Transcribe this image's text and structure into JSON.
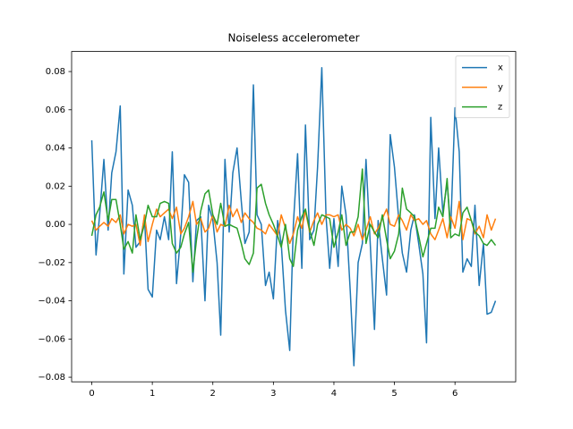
{
  "chart_data": {
    "type": "line",
    "title": "Noiseless accelerometer",
    "x": [
      0,
      0.07,
      0.13,
      0.2,
      0.27,
      0.33,
      0.4,
      0.47,
      0.53,
      0.6,
      0.67,
      0.73,
      0.8,
      0.87,
      0.93,
      1,
      1.07,
      1.13,
      1.2,
      1.27,
      1.33,
      1.4,
      1.47,
      1.53,
      1.6,
      1.67,
      1.73,
      1.8,
      1.87,
      1.93,
      2,
      2.07,
      2.13,
      2.2,
      2.27,
      2.33,
      2.4,
      2.47,
      2.53,
      2.6,
      2.67,
      2.73,
      2.8,
      2.87,
      2.93,
      3,
      3.07,
      3.13,
      3.2,
      3.27,
      3.33,
      3.4,
      3.47,
      3.53,
      3.6,
      3.67,
      3.73,
      3.8,
      3.87,
      3.93,
      4,
      4.07,
      4.13,
      4.2,
      4.27,
      4.33,
      4.4,
      4.47,
      4.53,
      4.6,
      4.67,
      4.73,
      4.8,
      4.87,
      4.93,
      5,
      5.07,
      5.13,
      5.2,
      5.27,
      5.33,
      5.4,
      5.47,
      5.53,
      5.6,
      5.67,
      5.73,
      5.8,
      5.87,
      5.93,
      6,
      6.07,
      6.13,
      6.2,
      6.27,
      6.33,
      6.4,
      6.47,
      6.53,
      6.6,
      6.67
    ],
    "series": [
      {
        "name": "x",
        "color": "#1f77b4",
        "values": [
          0.044,
          -0.016,
          0.005,
          0.034,
          -0.003,
          0.027,
          0.038,
          0.062,
          -0.026,
          0.018,
          0.01,
          -0.012,
          -0.009,
          0.004,
          -0.034,
          -0.038,
          -0.003,
          -0.008,
          0.004,
          -0.008,
          0.038,
          -0.031,
          -0.005,
          0.026,
          0.022,
          -0.03,
          0.002,
          0.004,
          -0.04,
          0.01,
          0.002,
          -0.02,
          -0.058,
          0.034,
          -0.004,
          0.027,
          0.04,
          0.012,
          -0.01,
          -0.004,
          0.073,
          0.005,
          0.0,
          -0.032,
          -0.025,
          -0.039,
          0.002,
          -0.01,
          -0.045,
          -0.066,
          0.0,
          0.037,
          -0.023,
          0.052,
          -0.008,
          -0.003,
          0.03,
          0.082,
          0.004,
          -0.023,
          0.003,
          -0.022,
          0.02,
          0.005,
          -0.035,
          -0.074,
          -0.02,
          -0.01,
          0.034,
          -0.01,
          -0.055,
          0.002,
          -0.018,
          -0.037,
          0.047,
          0.03,
          0.003,
          -0.015,
          -0.025,
          -0.003,
          0.005,
          -0.01,
          -0.026,
          -0.062,
          0.056,
          0.003,
          0.04,
          0.006,
          0.022,
          -0.002,
          0.061,
          0.038,
          -0.025,
          -0.018,
          -0.022,
          0.01,
          -0.032,
          -0.01,
          -0.047,
          -0.046,
          -0.04
        ]
      },
      {
        "name": "y",
        "color": "#ff7f0e",
        "values": [
          0.002,
          -0.003,
          -0.001,
          0.001,
          -0.001,
          0.003,
          0.001,
          0.005,
          -0.005,
          0.0,
          -0.001,
          0.0,
          -0.011,
          0.005,
          -0.009,
          0.0,
          0.008,
          0.004,
          0.006,
          0.008,
          0.003,
          0.009,
          -0.005,
          -0.002,
          0.004,
          0.012,
          0.0,
          0.003,
          -0.004,
          -0.002,
          0.005,
          -0.004,
          0.0,
          -0.001,
          0.01,
          0.004,
          0.008,
          0.001,
          0.006,
          0.003,
          0.001,
          -0.002,
          -0.003,
          -0.005,
          0.0,
          -0.003,
          -0.006,
          0.005,
          -0.002,
          -0.01,
          -0.005,
          0.004,
          -0.002,
          0.007,
          -0.004,
          0.002,
          0.006,
          0.0,
          0.005,
          0.005,
          0.004,
          0.005,
          -0.003,
          0.0,
          -0.002,
          -0.006,
          0.0,
          -0.008,
          -0.003,
          0.004,
          -0.005,
          -0.002,
          0.003,
          0.008,
          0.0,
          -0.001,
          0.005,
          0.002,
          -0.003,
          0.005,
          0.002,
          0.003,
          0.0,
          0.002,
          -0.005,
          -0.008,
          -0.003,
          0.003,
          -0.007,
          0.004,
          -0.002,
          0.012,
          -0.008,
          0.003,
          0.002,
          -0.005,
          -0.001,
          -0.007,
          0.005,
          -0.003,
          0.003
        ]
      },
      {
        "name": "z",
        "color": "#2ca02c",
        "values": [
          -0.006,
          0.005,
          0.009,
          0.017,
          0.002,
          0.013,
          0.013,
          0.0,
          -0.013,
          -0.009,
          -0.015,
          0.005,
          -0.008,
          0.0,
          0.01,
          0.004,
          0.004,
          0.011,
          0.012,
          0.011,
          -0.01,
          -0.015,
          -0.012,
          -0.005,
          0.001,
          -0.025,
          -0.008,
          0.007,
          0.016,
          0.018,
          0.005,
          0.0,
          0.011,
          -0.001,
          0.0,
          -0.001,
          -0.002,
          -0.01,
          -0.018,
          -0.021,
          -0.015,
          0.019,
          0.021,
          0.011,
          0.005,
          0.0,
          -0.006,
          -0.012,
          0.0,
          -0.018,
          -0.022,
          -0.003,
          0.004,
          0.008,
          -0.003,
          -0.011,
          0.0,
          0.005,
          0.004,
          0.003,
          -0.012,
          -0.004,
          0.005,
          -0.011,
          -0.004,
          -0.004,
          0.004,
          0.029,
          -0.01,
          0.0,
          -0.004,
          -0.007,
          0.005,
          -0.008,
          -0.018,
          -0.014,
          -0.005,
          0.019,
          0.008,
          0.006,
          0.004,
          -0.006,
          -0.017,
          -0.01,
          -0.002,
          -0.002,
          0.009,
          0.004,
          0.024,
          -0.007,
          -0.005,
          -0.006,
          0.006,
          0.009,
          0.002,
          -0.004,
          -0.006,
          -0.01,
          -0.011,
          -0.008,
          -0.011
        ]
      }
    ],
    "xlim": [
      -0.333,
      7.003
    ],
    "xticks": [
      0,
      1,
      2,
      3,
      4,
      5,
      6
    ],
    "ylim": [
      -0.0824,
      0.0905
    ],
    "yticks": [
      {
        "value": -0.08,
        "label": "−0.08"
      },
      {
        "value": -0.06,
        "label": "−0.06"
      },
      {
        "value": -0.04,
        "label": "−0.04"
      },
      {
        "value": -0.02,
        "label": "−0.02"
      },
      {
        "value": 0,
        "label": "0.00"
      },
      0.02,
      0.04,
      0.06,
      0.08
    ],
    "grid": false,
    "legend": "upper right"
  }
}
